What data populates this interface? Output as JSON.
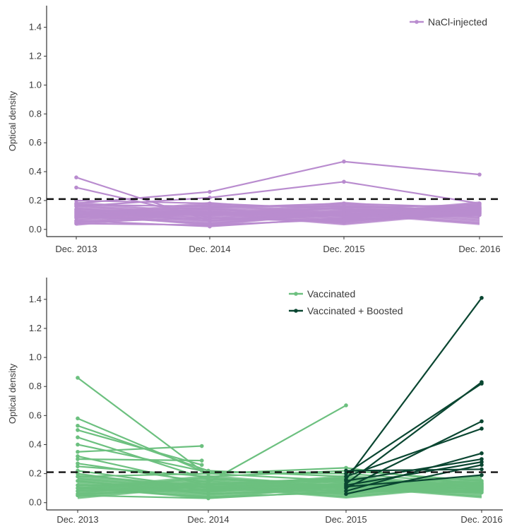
{
  "figure": {
    "threshold_style": "dashed black horizontal line at y = 0.21"
  },
  "chart_data": [
    {
      "type": "line",
      "panel": "top",
      "xlabel": "",
      "ylabel": "Optical density",
      "x_categories": [
        "Dec. 2013",
        "Dec. 2014",
        "Dec. 2015",
        "Dec. 2016"
      ],
      "yticks": [
        "0.0",
        "0.2",
        "0.4",
        "0.6",
        "0.8",
        "1.0",
        "1.2",
        "1.4"
      ],
      "ylim": [
        -0.05,
        1.55
      ],
      "threshold": 0.21,
      "grid": false,
      "legend_position": "top-right",
      "series": [
        {
          "name": "NaCl-injected",
          "color": "#b98ccf",
          "lines": [
            [
              [
                0,
                0.29
              ],
              [
                1,
                0.08
              ],
              [
                2,
                0.05
              ],
              [
                3,
                0.14
              ]
            ],
            [
              [
                0,
                0.36
              ],
              [
                1,
                0.06
              ],
              [
                2,
                0.1
              ],
              [
                3,
                0.12
              ]
            ],
            [
              [
                0,
                0.18
              ],
              [
                1,
                0.26
              ],
              [
                2,
                0.47
              ],
              [
                3,
                0.38
              ]
            ],
            [
              [
                0,
                0.16
              ],
              [
                1,
                0.22
              ],
              [
                2,
                0.33
              ],
              [
                3,
                0.18
              ]
            ],
            [
              [
                0,
                0.12
              ],
              [
                1,
                0.15
              ],
              [
                2,
                0.18
              ],
              [
                3,
                0.15
              ]
            ],
            [
              [
                0,
                0.09
              ],
              [
                1,
                0.04
              ],
              [
                2,
                0.12
              ],
              [
                3,
                0.16
              ]
            ],
            [
              [
                0,
                0.06
              ],
              [
                1,
                0.02
              ],
              [
                2,
                0.08
              ],
              [
                3,
                0.13
              ]
            ],
            [
              [
                0,
                0.14
              ],
              [
                1,
                0.1
              ],
              [
                2,
                0.15
              ],
              [
                3,
                0.17
              ]
            ],
            [
              [
                0,
                0.2
              ],
              [
                1,
                0.18
              ],
              [
                2,
                0.14
              ],
              [
                3,
                0.11
              ]
            ],
            [
              [
                0,
                0.05
              ],
              [
                1,
                0.08
              ],
              [
                2,
                0.06
              ],
              [
                3,
                0.1
              ]
            ],
            [
              [
                0,
                0.11
              ],
              [
                1,
                0.12
              ],
              [
                2,
                0.11
              ],
              [
                3,
                0.14
              ]
            ],
            [
              [
                0,
                0.08
              ],
              [
                1,
                0.14
              ],
              [
                2,
                0.09
              ],
              [
                3,
                0.12
              ]
            ],
            [
              [
                0,
                0.13
              ],
              [
                1,
                0.06
              ],
              [
                2,
                0.13
              ],
              [
                3,
                0.15
              ]
            ],
            [
              [
                0,
                0.17
              ],
              [
                1,
                0.16
              ],
              [
                2,
                0.16
              ],
              [
                3,
                0.13
              ]
            ],
            [
              [
                0,
                0.04
              ],
              [
                1,
                0.03
              ],
              [
                2,
                0.07
              ],
              [
                3,
                0.11
              ]
            ],
            [
              [
                0,
                0.1
              ],
              [
                1,
                0.11
              ],
              [
                2,
                0.1
              ],
              [
                3,
                0.14
              ]
            ]
          ]
        }
      ]
    },
    {
      "type": "line",
      "panel": "bottom",
      "xlabel": "",
      "ylabel": "Optical density",
      "x_categories": [
        "Dec. 2013",
        "Dec. 2014",
        "Dec. 2015",
        "Dec. 2016"
      ],
      "yticks": [
        "0.0",
        "0.2",
        "0.4",
        "0.6",
        "0.8",
        "1.0",
        "1.2",
        "1.4"
      ],
      "ylim": [
        -0.05,
        1.55
      ],
      "threshold": 0.21,
      "grid": false,
      "legend_position": "top-right",
      "series": [
        {
          "name": "Vaccinated",
          "color": "#6cc07f",
          "lines": [
            [
              [
                0,
                0.86
              ],
              [
                0.95,
                0.22
              ]
            ],
            [
              [
                0,
                0.58
              ],
              [
                1,
                0.2
              ],
              [
                2,
                0.15
              ],
              [
                3,
                0.12
              ]
            ],
            [
              [
                0,
                0.53
              ],
              [
                1,
                0.22
              ],
              [
                2,
                0.18
              ]
            ],
            [
              [
                0,
                0.5
              ],
              [
                0.95,
                0.26
              ]
            ],
            [
              [
                0,
                0.45
              ],
              [
                1,
                0.16
              ],
              [
                2,
                0.14
              ],
              [
                3,
                0.11
              ]
            ],
            [
              [
                0,
                0.4
              ],
              [
                1,
                0.21
              ],
              [
                2,
                0.2
              ],
              [
                3,
                0.13
              ]
            ],
            [
              [
                0,
                0.35
              ],
              [
                0.95,
                0.39
              ]
            ],
            [
              [
                0,
                0.32
              ],
              [
                1,
                0.12
              ],
              [
                2,
                0.16
              ],
              [
                3,
                0.1
              ]
            ],
            [
              [
                0,
                0.3
              ],
              [
                0.95,
                0.29
              ]
            ],
            [
              [
                0,
                0.27
              ],
              [
                1,
                0.14
              ],
              [
                2,
                0.67
              ]
            ],
            [
              [
                0,
                0.25
              ],
              [
                1,
                0.18
              ],
              [
                2,
                0.22
              ],
              [
                3,
                0.15
              ]
            ],
            [
              [
                0,
                0.22
              ],
              [
                1,
                0.1
              ],
              [
                2,
                0.13
              ],
              [
                3,
                0.14
              ]
            ],
            [
              [
                0,
                0.2
              ],
              [
                1,
                0.08
              ],
              [
                2,
                0.11
              ],
              [
                3,
                0.09
              ]
            ],
            [
              [
                0,
                0.18
              ],
              [
                1,
                0.2
              ],
              [
                2,
                0.24
              ],
              [
                3,
                0.12
              ]
            ],
            [
              [
                0,
                0.15
              ],
              [
                1,
                0.06
              ],
              [
                2,
                0.09
              ],
              [
                3,
                0.08
              ]
            ],
            [
              [
                0,
                0.12
              ],
              [
                1,
                0.13
              ],
              [
                2,
                0.17
              ],
              [
                3,
                0.11
              ]
            ],
            [
              [
                0,
                0.1
              ],
              [
                1,
                0.04
              ],
              [
                2,
                0.07
              ],
              [
                3,
                0.1
              ]
            ],
            [
              [
                0,
                0.08
              ],
              [
                1,
                0.11
              ],
              [
                2,
                0.12
              ],
              [
                3,
                0.09
              ]
            ],
            [
              [
                0,
                0.06
              ],
              [
                1,
                0.09
              ],
              [
                2,
                0.1
              ],
              [
                3,
                0.13
              ]
            ],
            [
              [
                0,
                0.05
              ],
              [
                1,
                0.03
              ],
              [
                2,
                0.08
              ],
              [
                3,
                0.07
              ]
            ]
          ]
        },
        {
          "name": "Vaccinated + Boosted",
          "color": "#0a4631",
          "lines": [
            [
              [
                2,
                0.16
              ],
              [
                3,
                1.41
              ]
            ],
            [
              [
                2,
                0.13
              ],
              [
                3,
                0.83
              ]
            ],
            [
              [
                2,
                0.2
              ],
              [
                3,
                0.82
              ]
            ],
            [
              [
                2,
                0.1
              ],
              [
                3,
                0.56
              ]
            ],
            [
              [
                2,
                0.18
              ],
              [
                3,
                0.51
              ]
            ],
            [
              [
                2,
                0.08
              ],
              [
                3,
                0.34
              ]
            ],
            [
              [
                2,
                0.15
              ],
              [
                3,
                0.3
              ]
            ],
            [
              [
                2,
                0.12
              ],
              [
                3,
                0.28
              ]
            ],
            [
              [
                2,
                0.06
              ],
              [
                3,
                0.26
              ]
            ],
            [
              [
                2,
                0.22
              ],
              [
                3,
                0.23
              ]
            ],
            [
              [
                2,
                0.11
              ],
              [
                3,
                0.19
              ]
            ]
          ]
        }
      ]
    }
  ]
}
